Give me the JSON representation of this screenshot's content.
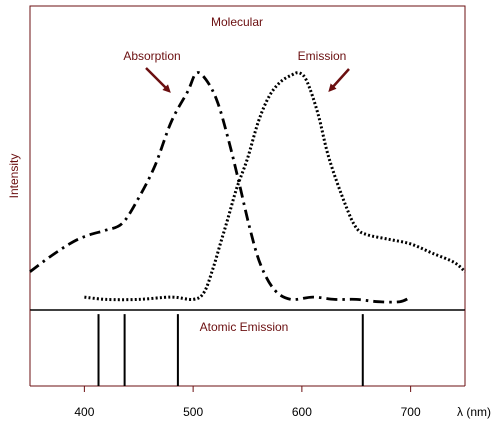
{
  "chart_data": [
    {
      "type": "line",
      "title": "Molecular",
      "ylabel": "Intensity",
      "xlim": [
        350,
        750
      ],
      "ylim": [
        0,
        1
      ],
      "colors": {
        "label": "#6b0f10",
        "axes": "#6b0f10",
        "curves": "#000000"
      },
      "series": [
        {
          "name": "Absorption",
          "style": "dash-dot",
          "x": [
            350,
            370,
            390,
            405,
            420,
            435,
            450,
            465,
            480,
            495,
            503,
            512,
            522,
            532,
            542,
            552,
            562,
            575,
            590,
            610,
            630,
            650,
            670,
            690,
            700
          ],
          "y": [
            0.14,
            0.21,
            0.27,
            0.3,
            0.32,
            0.35,
            0.46,
            0.6,
            0.79,
            0.92,
            1.0,
            0.97,
            0.88,
            0.72,
            0.53,
            0.33,
            0.17,
            0.06,
            0.02,
            0.03,
            0.02,
            0.02,
            0.01,
            0.01,
            0.03
          ]
        },
        {
          "name": "Emission",
          "style": "dotted",
          "x": [
            400,
            420,
            450,
            480,
            500,
            510,
            518,
            525,
            532,
            540,
            550,
            560,
            570,
            580,
            590,
            598,
            605,
            615,
            625,
            640,
            650,
            660,
            680,
            700,
            720,
            740,
            750
          ],
          "y": [
            0.03,
            0.02,
            0.02,
            0.03,
            0.02,
            0.05,
            0.15,
            0.26,
            0.37,
            0.5,
            0.63,
            0.79,
            0.9,
            0.96,
            0.99,
            1.0,
            0.96,
            0.82,
            0.63,
            0.43,
            0.33,
            0.3,
            0.28,
            0.26,
            0.22,
            0.18,
            0.14
          ]
        }
      ],
      "annotations": [
        "Absorption",
        "Emission"
      ]
    },
    {
      "type": "bar",
      "title": "Atomic Emission",
      "xlabel": "λ (nm)",
      "xlim": [
        350,
        750
      ],
      "xticks": [
        400,
        500,
        600,
        700
      ],
      "lines_nm": [
        413,
        437,
        486,
        656
      ],
      "line_heights": [
        0.84,
        0.84,
        0.84,
        0.84
      ]
    }
  ]
}
